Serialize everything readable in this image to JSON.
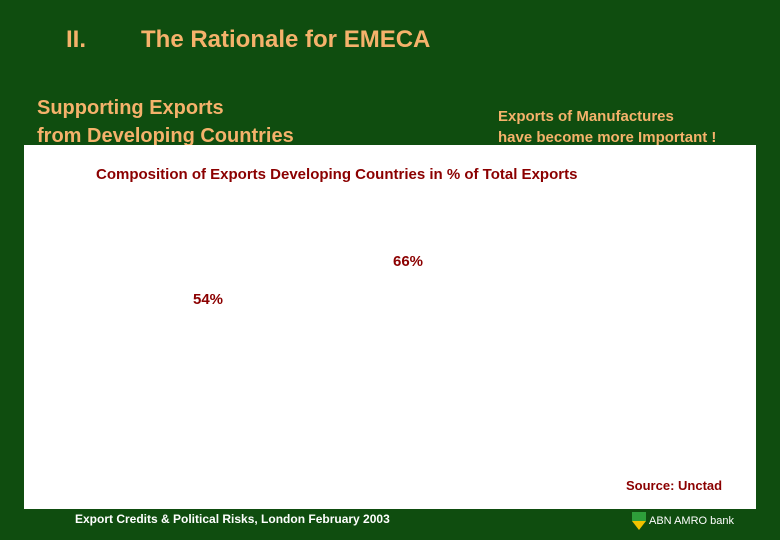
{
  "header": {
    "section_number": "II.",
    "title": "The Rationale for EMECA"
  },
  "subtitles": {
    "left_line1": "Supporting Exports",
    "left_line2": "from Developing Countries",
    "right_line1": "Exports of Manufactures",
    "right_line2": "have become more Important !"
  },
  "chart_data": {
    "type": "bar",
    "title": "Composition of Exports Developing Countries in % of Total Exports",
    "data_labels": [
      "54%",
      "66%"
    ],
    "values": [
      54,
      66
    ],
    "unit": "%",
    "source": "Source: Unctad"
  },
  "footer": {
    "text": "Export Credits & Political Risks, London February 2003",
    "bank_name": "ABN AMRO bank"
  },
  "colors": {
    "background": "#0f4d0f",
    "heading": "#f5b26b",
    "chart_text": "#8b0000",
    "logo_green": "#2e9e3a",
    "logo_yellow": "#f2c200"
  },
  "icons": {
    "logo": "shield-icon"
  }
}
